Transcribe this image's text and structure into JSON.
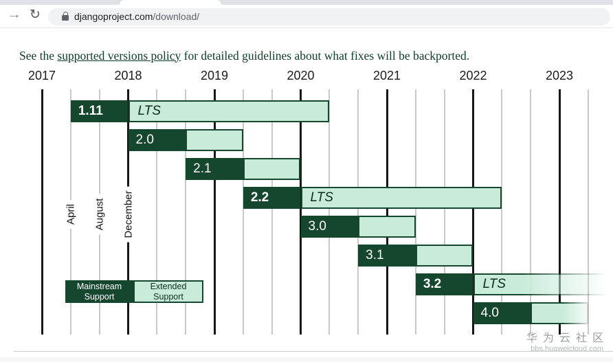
{
  "browser": {
    "url": {
      "domain": "djangoproject.com",
      "path": "/download/"
    },
    "icons": {
      "forward": "→",
      "reload": "↻"
    }
  },
  "intro": {
    "prefix": "See the ",
    "link_text": "supported versions policy",
    "suffix": " for detailed guidelines about what fixes will be backported."
  },
  "chart_data": {
    "type": "gantt",
    "x_axis": {
      "years": [
        2017,
        2018,
        2019,
        2020,
        2021,
        2022,
        2023
      ]
    },
    "month_gridline_labels": [
      {
        "label": "April",
        "at": "2017-04"
      },
      {
        "label": "August",
        "at": "2017-08"
      },
      {
        "label": "December",
        "at": "2017-12"
      }
    ],
    "lts_label": "LTS",
    "bars": [
      {
        "version": "1.11",
        "lts": true,
        "start": "2017-04",
        "mainstream_end": "2017-12",
        "extended_end": "2020-04"
      },
      {
        "version": "2.0",
        "lts": false,
        "start": "2017-12",
        "mainstream_end": "2018-08",
        "extended_end": "2019-04"
      },
      {
        "version": "2.1",
        "lts": false,
        "start": "2018-08",
        "mainstream_end": "2019-04",
        "extended_end": "2019-12"
      },
      {
        "version": "2.2",
        "lts": true,
        "start": "2019-04",
        "mainstream_end": "2019-12",
        "extended_end": "2022-04"
      },
      {
        "version": "3.0",
        "lts": false,
        "start": "2019-12",
        "mainstream_end": "2020-08",
        "extended_end": "2021-04"
      },
      {
        "version": "3.1",
        "lts": false,
        "start": "2020-08",
        "mainstream_end": "2021-04",
        "extended_end": "2021-12"
      },
      {
        "version": "3.2",
        "lts": true,
        "start": "2021-04",
        "mainstream_end": "2021-12",
        "extended_end": "2024-04",
        "fade": "long"
      },
      {
        "version": "4.0",
        "lts": false,
        "start": "2021-12",
        "mainstream_end": "2022-08",
        "extended_end": "2023-04",
        "fade": "edge"
      }
    ],
    "legend": {
      "mainstream": "Mainstream Support",
      "extended": "Extended Support"
    },
    "colors": {
      "mainstream": "#15462e",
      "extended": "#c9ebd9",
      "grid_major": "#161616",
      "grid_minor": "#c8c8c8"
    }
  },
  "watermark": {
    "title": "华为云社区",
    "site": "bbs.huaweicloud.com"
  }
}
